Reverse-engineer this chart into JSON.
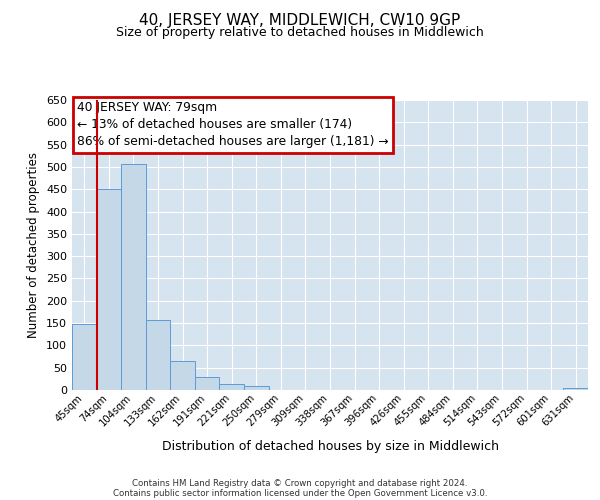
{
  "title": "40, JERSEY WAY, MIDDLEWICH, CW10 9GP",
  "subtitle": "Size of property relative to detached houses in Middlewich",
  "xlabel": "Distribution of detached houses by size in Middlewich",
  "ylabel": "Number of detached properties",
  "bar_labels": [
    "45sqm",
    "74sqm",
    "104sqm",
    "133sqm",
    "162sqm",
    "191sqm",
    "221sqm",
    "250sqm",
    "279sqm",
    "309sqm",
    "338sqm",
    "367sqm",
    "396sqm",
    "426sqm",
    "455sqm",
    "484sqm",
    "514sqm",
    "543sqm",
    "572sqm",
    "601sqm",
    "631sqm"
  ],
  "bar_values": [
    148,
    450,
    507,
    157,
    65,
    30,
    13,
    8,
    0,
    0,
    0,
    0,
    0,
    0,
    0,
    0,
    0,
    0,
    0,
    0,
    5
  ],
  "bar_color": "#c5d8e8",
  "bar_edge_color": "#5b9bd5",
  "vline_color": "#cc0000",
  "vline_x_idx": 0.5,
  "ylim": [
    0,
    650
  ],
  "yticks": [
    0,
    50,
    100,
    150,
    200,
    250,
    300,
    350,
    400,
    450,
    500,
    550,
    600,
    650
  ],
  "annotation_title": "40 JERSEY WAY: 79sqm",
  "annotation_line1": "← 13% of detached houses are smaller (174)",
  "annotation_line2": "86% of semi-detached houses are larger (1,181) →",
  "annotation_box_edgecolor": "#cc0000",
  "annotation_bg": "#ffffff",
  "footer1": "Contains HM Land Registry data © Crown copyright and database right 2024.",
  "footer2": "Contains public sector information licensed under the Open Government Licence v3.0.",
  "plot_bg_color": "#d6e4f0",
  "fig_bg_color": "#ffffff",
  "grid_color": "#ffffff"
}
